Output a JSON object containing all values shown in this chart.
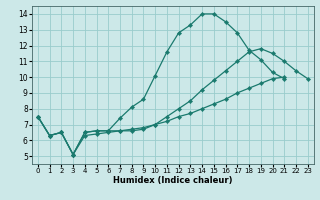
{
  "xlabel": "Humidex (Indice chaleur)",
  "bg_color": "#cce8e8",
  "grid_color": "#99cccc",
  "line_color": "#1a7a6e",
  "series": [
    {
      "x": [
        0,
        1,
        2,
        3,
        4,
        5,
        6,
        7,
        8,
        9,
        10,
        11,
        12,
        13,
        14,
        15,
        16,
        17,
        18,
        19,
        20,
        21
      ],
      "y": [
        7.5,
        6.3,
        6.5,
        5.1,
        6.5,
        6.6,
        6.6,
        7.4,
        8.1,
        8.6,
        10.1,
        11.6,
        12.8,
        13.3,
        14.0,
        14.0,
        13.5,
        12.8,
        11.7,
        11.1,
        10.3,
        9.9
      ]
    },
    {
      "x": [
        0,
        1,
        2,
        3,
        4,
        5,
        6,
        7,
        8,
        9,
        10,
        11,
        12,
        13,
        14,
        15,
        16,
        17,
        18,
        19,
        20,
        21,
        22,
        23
      ],
      "y": [
        7.5,
        6.3,
        6.5,
        5.1,
        6.5,
        6.6,
        6.6,
        6.6,
        6.6,
        6.7,
        7.0,
        7.5,
        8.0,
        8.5,
        9.2,
        9.8,
        10.4,
        11.0,
        11.6,
        11.8,
        11.5,
        11.0,
        10.4,
        9.9
      ]
    },
    {
      "x": [
        0,
        1,
        2,
        3,
        4,
        5,
        6,
        7,
        8,
        9,
        10,
        11,
        12,
        13,
        14,
        15,
        16,
        17,
        18,
        19,
        20,
        21,
        22,
        23
      ],
      "y": [
        7.5,
        6.3,
        6.5,
        5.1,
        6.3,
        6.4,
        6.5,
        6.6,
        6.7,
        6.8,
        7.0,
        7.2,
        7.5,
        7.7,
        8.0,
        8.3,
        8.6,
        9.0,
        9.3,
        9.6,
        9.9,
        10.0,
        null,
        null
      ]
    }
  ],
  "xlim": [
    -0.5,
    23.5
  ],
  "ylim": [
    4.5,
    14.5
  ],
  "yticks": [
    5,
    6,
    7,
    8,
    9,
    10,
    11,
    12,
    13,
    14
  ],
  "xticks": [
    0,
    1,
    2,
    3,
    4,
    5,
    6,
    7,
    8,
    9,
    10,
    11,
    12,
    13,
    14,
    15,
    16,
    17,
    18,
    19,
    20,
    21,
    22,
    23
  ],
  "xlabel_fontsize": 6.0,
  "tick_fontsize_x": 5.0,
  "tick_fontsize_y": 5.5,
  "linewidth": 0.9,
  "markersize": 2.2
}
